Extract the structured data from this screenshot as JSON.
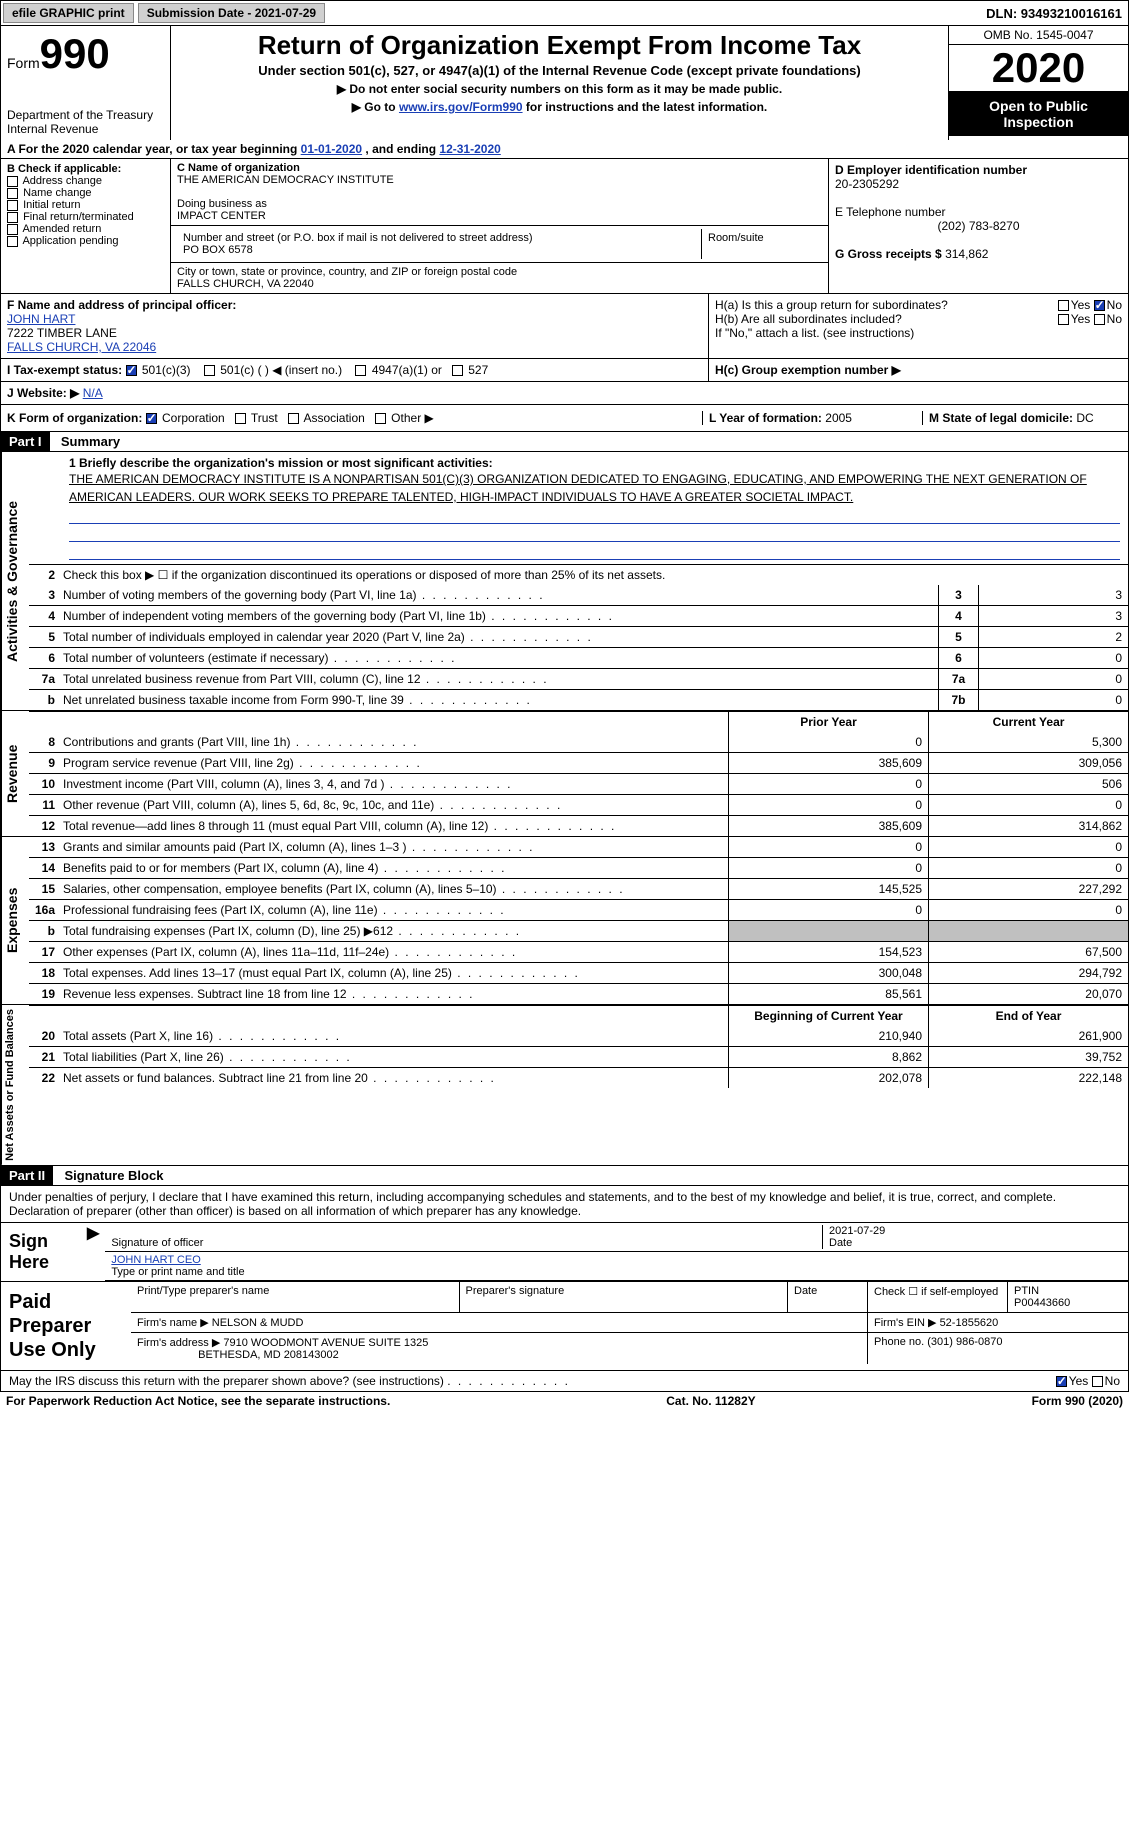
{
  "topbar": {
    "efile": "efile GRAPHIC print",
    "submission": "Submission Date - 2021-07-29",
    "dln": "DLN: 93493210016161"
  },
  "header": {
    "form": "Form",
    "form_num": "990",
    "dept": "Department of the Treasury\nInternal Revenue",
    "title": "Return of Organization Exempt From Income Tax",
    "subtitle": "Under section 501(c), 527, or 4947(a)(1) of the Internal Revenue Code (except private foundations)",
    "note1": "▶ Do not enter social security numbers on this form as it may be made public.",
    "note2_pre": "▶ Go to ",
    "note2_link": "www.irs.gov/Form990",
    "note2_post": " for instructions and the latest information.",
    "omb": "OMB No. 1545-0047",
    "year": "2020",
    "open": "Open to Public Inspection"
  },
  "lineA": {
    "text_pre": "A For the 2020 calendar year, or tax year beginning ",
    "begin": "01-01-2020",
    "mid": " , and ending ",
    "end": "12-31-2020"
  },
  "boxB": {
    "label": "B Check if applicable:",
    "items": [
      "Address change",
      "Name change",
      "Initial return",
      "Final return/terminated",
      "Amended return",
      "Application pending"
    ]
  },
  "boxC": {
    "label": "C Name of organization",
    "name": "THE AMERICAN DEMOCRACY INSTITUTE",
    "dba_label": "Doing business as",
    "dba": "IMPACT CENTER",
    "addr_label": "Number and street (or P.O. box if mail is not delivered to street address)",
    "room_label": "Room/suite",
    "addr": "PO BOX 6578",
    "city_label": "City or town, state or province, country, and ZIP or foreign postal code",
    "city": "FALLS CHURCH, VA   22040"
  },
  "boxD": {
    "label": "D Employer identification number",
    "val": "20-2305292"
  },
  "boxE": {
    "label": "E Telephone number",
    "val": "(202) 783-8270"
  },
  "boxG": {
    "label": "G Gross receipts $",
    "val": "314,862"
  },
  "boxF": {
    "label": "F Name and address of principal officer:",
    "name": "JOHN HART",
    "addr1": "7222 TIMBER LANE",
    "addr2": "FALLS CHURCH, VA  22046"
  },
  "boxH": {
    "a": "H(a)  Is this a group return for subordinates?",
    "b": "H(b)  Are all subordinates included?",
    "note": "If \"No,\" attach a list. (see instructions)",
    "c": "H(c)  Group exemption number ▶"
  },
  "boxI": {
    "label": "I  Tax-exempt status:",
    "opts": [
      "501(c)(3)",
      "501(c) (  ) ◀ (insert no.)",
      "4947(a)(1) or",
      "527"
    ]
  },
  "boxJ": {
    "label": "J  Website: ▶",
    "val": "N/A"
  },
  "boxK": {
    "label": "K Form of organization:",
    "opts": [
      "Corporation",
      "Trust",
      "Association",
      "Other ▶"
    ]
  },
  "boxL": {
    "label": "L Year of formation:",
    "val": "2005"
  },
  "boxM": {
    "label": "M State of legal domicile:",
    "val": "DC"
  },
  "part1": {
    "hdr": "Part I",
    "title": "Summary"
  },
  "mission": {
    "label": "1   Briefly describe the organization's mission or most significant activities:",
    "text": "THE AMERICAN DEMOCRACY INSTITUTE IS A NONPARTISAN 501(C)(3) ORGANIZATION DEDICATED TO ENGAGING, EDUCATING, AND EMPOWERING THE NEXT GENERATION OF AMERICAN LEADERS. OUR WORK SEEKS TO PREPARE TALENTED, HIGH-IMPACT INDIVIDUALS TO HAVE A GREATER SOCIETAL IMPACT."
  },
  "gov": {
    "side": "Activities & Governance",
    "q2": "Check this box ▶ ☐  if the organization discontinued its operations or disposed of more than 25% of its net assets.",
    "rows": [
      {
        "n": "3",
        "t": "Number of voting members of the governing body (Part VI, line 1a)",
        "b": "3",
        "v": "3"
      },
      {
        "n": "4",
        "t": "Number of independent voting members of the governing body (Part VI, line 1b)",
        "b": "4",
        "v": "3"
      },
      {
        "n": "5",
        "t": "Total number of individuals employed in calendar year 2020 (Part V, line 2a)",
        "b": "5",
        "v": "2"
      },
      {
        "n": "6",
        "t": "Total number of volunteers (estimate if necessary)",
        "b": "6",
        "v": "0"
      },
      {
        "n": "7a",
        "t": "Total unrelated business revenue from Part VIII, column (C), line 12",
        "b": "7a",
        "v": "0"
      },
      {
        "n": "b",
        "t": "Net unrelated business taxable income from Form 990-T, line 39",
        "b": "7b",
        "v": "0"
      }
    ]
  },
  "rev": {
    "side": "Revenue",
    "hdr_prior": "Prior Year",
    "hdr_curr": "Current Year",
    "rows": [
      {
        "n": "8",
        "t": "Contributions and grants (Part VIII, line 1h)",
        "p": "0",
        "c": "5,300"
      },
      {
        "n": "9",
        "t": "Program service revenue (Part VIII, line 2g)",
        "p": "385,609",
        "c": "309,056"
      },
      {
        "n": "10",
        "t": "Investment income (Part VIII, column (A), lines 3, 4, and 7d )",
        "p": "0",
        "c": "506"
      },
      {
        "n": "11",
        "t": "Other revenue (Part VIII, column (A), lines 5, 6d, 8c, 9c, 10c, and 11e)",
        "p": "0",
        "c": "0"
      },
      {
        "n": "12",
        "t": "Total revenue—add lines 8 through 11 (must equal Part VIII, column (A), line 12)",
        "p": "385,609",
        "c": "314,862"
      }
    ]
  },
  "exp": {
    "side": "Expenses",
    "rows": [
      {
        "n": "13",
        "t": "Grants and similar amounts paid (Part IX, column (A), lines 1–3 )",
        "p": "0",
        "c": "0"
      },
      {
        "n": "14",
        "t": "Benefits paid to or for members (Part IX, column (A), line 4)",
        "p": "0",
        "c": "0"
      },
      {
        "n": "15",
        "t": "Salaries, other compensation, employee benefits (Part IX, column (A), lines 5–10)",
        "p": "145,525",
        "c": "227,292"
      },
      {
        "n": "16a",
        "t": "Professional fundraising fees (Part IX, column (A), line 11e)",
        "p": "0",
        "c": "0"
      },
      {
        "n": "b",
        "t": "Total fundraising expenses (Part IX, column (D), line 25) ▶612",
        "p": "",
        "c": "",
        "shade": true
      },
      {
        "n": "17",
        "t": "Other expenses (Part IX, column (A), lines 11a–11d, 11f–24e)",
        "p": "154,523",
        "c": "67,500"
      },
      {
        "n": "18",
        "t": "Total expenses. Add lines 13–17 (must equal Part IX, column (A), line 25)",
        "p": "300,048",
        "c": "294,792"
      },
      {
        "n": "19",
        "t": "Revenue less expenses. Subtract line 18 from line 12",
        "p": "85,561",
        "c": "20,070"
      }
    ]
  },
  "bal": {
    "side": "Net Assets or Fund Balances",
    "hdr_beg": "Beginning of Current Year",
    "hdr_end": "End of Year",
    "rows": [
      {
        "n": "20",
        "t": "Total assets (Part X, line 16)",
        "p": "210,940",
        "c": "261,900"
      },
      {
        "n": "21",
        "t": "Total liabilities (Part X, line 26)",
        "p": "8,862",
        "c": "39,752"
      },
      {
        "n": "22",
        "t": "Net assets or fund balances. Subtract line 21 from line 20",
        "p": "202,078",
        "c": "222,148"
      }
    ]
  },
  "part2": {
    "hdr": "Part II",
    "title": "Signature Block"
  },
  "sig": {
    "decl": "Under penalties of perjury, I declare that I have examined this return, including accompanying schedules and statements, and to the best of my knowledge and belief, it is true, correct, and complete. Declaration of preparer (other than officer) is based on all information of which preparer has any knowledge.",
    "sign_here": "Sign Here",
    "sig_label": "Signature of officer",
    "date": "2021-07-29",
    "date_label": "Date",
    "name": "JOHN HART CEO",
    "name_label": "Type or print name and title"
  },
  "prep": {
    "label": "Paid Preparer Use Only",
    "h1": "Print/Type preparer's name",
    "h2": "Preparer's signature",
    "h3": "Date",
    "h4_pre": "Check ☐ if self-employed",
    "h5": "PTIN",
    "ptin": "P00443660",
    "firm_label": "Firm's name    ▶",
    "firm": "NELSON & MUDD",
    "ein_label": "Firm's EIN ▶",
    "ein": "52-1855620",
    "addr_label": "Firm's address ▶",
    "addr": "7910 WOODMONT AVENUE SUITE 1325",
    "addr2": "BETHESDA, MD  208143002",
    "phone_label": "Phone no.",
    "phone": "(301) 986-0870"
  },
  "discuss": "May the IRS discuss this return with the preparer shown above? (see instructions)",
  "footer": {
    "left": "For Paperwork Reduction Act Notice, see the separate instructions.",
    "mid": "Cat. No. 11282Y",
    "right": "Form 990 (2020)"
  }
}
